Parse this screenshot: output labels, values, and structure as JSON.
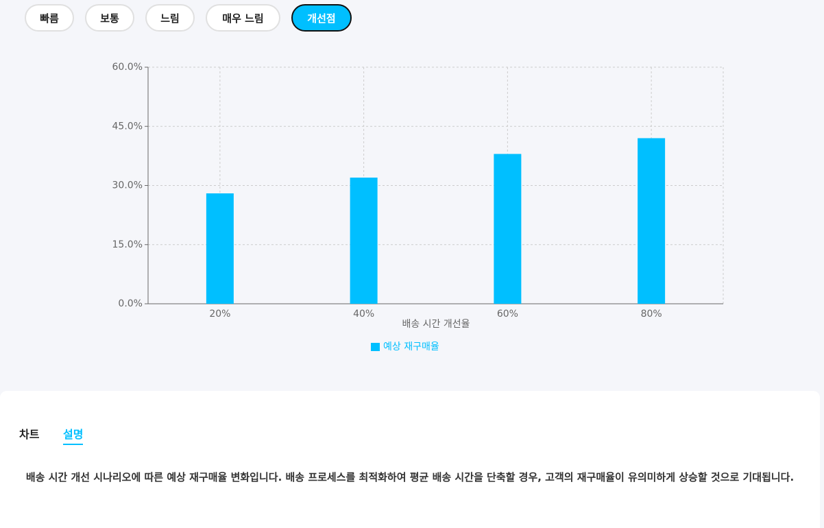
{
  "buttons": [
    "빠름",
    "보통",
    "느림",
    "매우 느림",
    "개선점"
  ],
  "chart_data": {
    "type": "bar",
    "x_label": "배송 시간 개선율",
    "categories": [
      "20%",
      "40%",
      "60%",
      "80%"
    ],
    "series": [
      {
        "name": "예상 재구매율",
        "color": "#00bfff",
        "values": [
          28,
          32,
          38,
          42
        ]
      }
    ],
    "ylim": [
      0,
      60
    ],
    "yticks": [
      {
        "value": 0,
        "label": "0.0%"
      },
      {
        "value": 15,
        "label": "15.0%"
      },
      {
        "value": 30,
        "label": "30.0%"
      },
      {
        "value": 45,
        "label": "45.0%"
      },
      {
        "value": 60,
        "label": "60.0%"
      }
    ],
    "grid": true,
    "legend": "bottom"
  },
  "tabs": [
    "차트",
    "설명"
  ],
  "description": "배송 시간 개선 시나리오에 따른 예상 재구매율 변화입니다. 배송 프로세스를 최적화하여 평균 배송 시간을 단축할 경우, 고객의 재구매율이 유의미하게 상승할 것으로 기대됩니다."
}
